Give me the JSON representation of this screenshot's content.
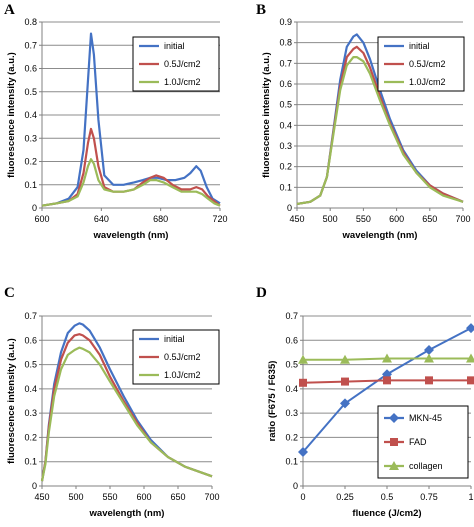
{
  "chart_data": [
    {
      "id": "A",
      "type": "line",
      "panel_label": "A",
      "xlabel": "wavelength (nm)",
      "ylabel": "fluorescence intensity (a.u.)",
      "xlim": [
        600,
        720
      ],
      "ylim": [
        0,
        0.8
      ],
      "xticks": [
        600,
        640,
        680,
        720
      ],
      "yticks": [
        0,
        0.1,
        0.2,
        0.3,
        0.4,
        0.5,
        0.6,
        0.7,
        0.8
      ],
      "xtick_labels": [
        "600",
        "640",
        "680",
        "720"
      ],
      "ytick_labels": [
        "0",
        "0.1",
        "0.2",
        "0.3",
        "0.4",
        "0.5",
        "0.6",
        "0.7",
        "0.8"
      ],
      "grid": "horizontal",
      "legend": "top-right",
      "series": [
        {
          "name": "initial",
          "color": "#4472c4",
          "x": [
            600,
            610,
            618,
            624,
            628,
            631,
            633,
            635,
            638,
            642,
            648,
            655,
            662,
            668,
            673,
            678,
            684,
            690,
            696,
            700,
            704,
            707,
            711,
            715,
            720
          ],
          "y": [
            0.01,
            0.02,
            0.04,
            0.09,
            0.25,
            0.55,
            0.75,
            0.66,
            0.38,
            0.14,
            0.1,
            0.1,
            0.11,
            0.12,
            0.13,
            0.13,
            0.12,
            0.12,
            0.13,
            0.15,
            0.18,
            0.16,
            0.09,
            0.04,
            0.02
          ]
        },
        {
          "name": "0.5J/cm2",
          "color": "#c0504d",
          "x": [
            600,
            610,
            618,
            624,
            628,
            631,
            633,
            635,
            638,
            642,
            648,
            655,
            662,
            668,
            673,
            677,
            682,
            688,
            694,
            700,
            704,
            708,
            712,
            716,
            720
          ],
          "y": [
            0.01,
            0.02,
            0.03,
            0.06,
            0.15,
            0.28,
            0.34,
            0.3,
            0.18,
            0.09,
            0.07,
            0.07,
            0.08,
            0.11,
            0.13,
            0.14,
            0.13,
            0.1,
            0.08,
            0.08,
            0.09,
            0.08,
            0.05,
            0.03,
            0.01
          ]
        },
        {
          "name": "1.0J/cm2",
          "color": "#9bbb59",
          "x": [
            600,
            610,
            618,
            624,
            628,
            631,
            633,
            635,
            638,
            642,
            648,
            655,
            662,
            668,
            673,
            677,
            682,
            688,
            694,
            700,
            704,
            708,
            712,
            716,
            720
          ],
          "y": [
            0.01,
            0.02,
            0.03,
            0.05,
            0.11,
            0.18,
            0.21,
            0.19,
            0.12,
            0.08,
            0.07,
            0.07,
            0.08,
            0.1,
            0.12,
            0.12,
            0.11,
            0.09,
            0.07,
            0.07,
            0.07,
            0.06,
            0.04,
            0.02,
            0.01
          ]
        }
      ]
    },
    {
      "id": "B",
      "type": "line",
      "panel_label": "B",
      "xlabel": "wavelength (nm)",
      "ylabel": "fluorescence intensity (a.u.)",
      "xlim": [
        450,
        700
      ],
      "ylim": [
        0,
        0.9
      ],
      "xticks": [
        450,
        500,
        550,
        600,
        650,
        700
      ],
      "yticks": [
        0,
        0.1,
        0.2,
        0.3,
        0.4,
        0.5,
        0.6,
        0.7,
        0.8,
        0.9
      ],
      "xtick_labels": [
        "450",
        "500",
        "550",
        "600",
        "650",
        "700"
      ],
      "ytick_labels": [
        "0",
        "0.1",
        "0.2",
        "0.3",
        "0.4",
        "0.5",
        "0.6",
        "0.7",
        "0.8",
        "0.9"
      ],
      "grid": "horizontal",
      "legend": "top-right",
      "series": [
        {
          "name": "initial",
          "color": "#4472c4",
          "x": [
            450,
            470,
            485,
            495,
            505,
            515,
            525,
            535,
            540,
            550,
            560,
            575,
            590,
            610,
            630,
            650,
            670,
            700
          ],
          "y": [
            0.02,
            0.03,
            0.06,
            0.15,
            0.38,
            0.62,
            0.78,
            0.83,
            0.84,
            0.8,
            0.72,
            0.57,
            0.43,
            0.28,
            0.18,
            0.11,
            0.07,
            0.03
          ]
        },
        {
          "name": "0.5J/cm2",
          "color": "#c0504d",
          "x": [
            450,
            470,
            485,
            495,
            505,
            515,
            525,
            535,
            540,
            550,
            560,
            575,
            590,
            610,
            630,
            650,
            670,
            700
          ],
          "y": [
            0.02,
            0.03,
            0.06,
            0.15,
            0.37,
            0.59,
            0.73,
            0.77,
            0.78,
            0.75,
            0.68,
            0.54,
            0.41,
            0.27,
            0.17,
            0.11,
            0.07,
            0.03
          ]
        },
        {
          "name": "1.0J/cm2",
          "color": "#9bbb59",
          "x": [
            450,
            470,
            485,
            495,
            505,
            515,
            525,
            535,
            540,
            550,
            560,
            575,
            590,
            610,
            630,
            650,
            670,
            700
          ],
          "y": [
            0.02,
            0.03,
            0.06,
            0.15,
            0.36,
            0.57,
            0.69,
            0.73,
            0.73,
            0.71,
            0.65,
            0.52,
            0.4,
            0.26,
            0.17,
            0.1,
            0.06,
            0.03
          ]
        }
      ]
    },
    {
      "id": "C",
      "type": "line",
      "panel_label": "C",
      "xlabel": "wavelength (nm)",
      "ylabel": "fluorescence intensity (a.u.)",
      "xlim": [
        450,
        700
      ],
      "ylim": [
        0,
        0.7
      ],
      "xticks": [
        450,
        500,
        550,
        600,
        650,
        700
      ],
      "yticks": [
        0,
        0.1,
        0.2,
        0.3,
        0.4,
        0.5,
        0.6,
        0.7
      ],
      "xtick_labels": [
        "450",
        "500",
        "550",
        "600",
        "650",
        "700"
      ],
      "ytick_labels": [
        "0",
        "0.1",
        "0.2",
        "0.3",
        "0.4",
        "0.5",
        "0.6",
        "0.7"
      ],
      "grid": "horizontal",
      "legend": "top-right",
      "series": [
        {
          "name": "initial",
          "color": "#4472c4",
          "x": [
            450,
            455,
            460,
            468,
            478,
            488,
            498,
            505,
            510,
            520,
            535,
            550,
            570,
            590,
            610,
            635,
            660,
            700
          ],
          "y": [
            0.02,
            0.1,
            0.25,
            0.42,
            0.55,
            0.63,
            0.66,
            0.67,
            0.665,
            0.64,
            0.57,
            0.48,
            0.37,
            0.27,
            0.19,
            0.12,
            0.08,
            0.04
          ]
        },
        {
          "name": "0.5J/cm2",
          "color": "#c0504d",
          "x": [
            450,
            455,
            460,
            468,
            478,
            488,
            498,
            505,
            510,
            520,
            535,
            550,
            570,
            590,
            610,
            635,
            660,
            700
          ],
          "y": [
            0.02,
            0.1,
            0.24,
            0.4,
            0.52,
            0.59,
            0.62,
            0.625,
            0.62,
            0.6,
            0.54,
            0.45,
            0.35,
            0.26,
            0.18,
            0.12,
            0.08,
            0.04
          ]
        },
        {
          "name": "1.0J/cm2",
          "color": "#9bbb59",
          "x": [
            450,
            455,
            460,
            468,
            478,
            488,
            498,
            505,
            510,
            520,
            535,
            550,
            570,
            590,
            610,
            635,
            660,
            700
          ],
          "y": [
            0.02,
            0.09,
            0.22,
            0.37,
            0.48,
            0.54,
            0.56,
            0.57,
            0.565,
            0.55,
            0.5,
            0.43,
            0.34,
            0.25,
            0.18,
            0.12,
            0.08,
            0.04
          ]
        }
      ]
    },
    {
      "id": "D",
      "type": "line",
      "panel_label": "D",
      "xlabel": "fluence (J/cm2)",
      "ylabel": "ratio (F675 / F635)",
      "xlim": [
        0,
        1
      ],
      "ylim": [
        0,
        0.7
      ],
      "xticks": [
        0,
        0.25,
        0.5,
        0.75,
        1
      ],
      "yticks": [
        0,
        0.1,
        0.2,
        0.3,
        0.4,
        0.5,
        0.6,
        0.7
      ],
      "xtick_labels": [
        "0",
        "0.25",
        "0.5",
        "0.75",
        "1"
      ],
      "ytick_labels": [
        "0",
        "0.1",
        "0.2",
        "0.3",
        "0.4",
        "0.5",
        "0.6",
        "0.7"
      ],
      "grid": "horizontal",
      "legend": "bottom-right",
      "series": [
        {
          "name": "MKN-45",
          "color": "#4472c4",
          "marker": "diamond",
          "x": [
            0,
            0.25,
            0.5,
            0.75,
            1
          ],
          "y": [
            0.14,
            0.34,
            0.46,
            0.56,
            0.65
          ],
          "err": [
            0.015,
            0.015,
            0.01,
            0.01,
            0.008
          ]
        },
        {
          "name": "FAD",
          "color": "#c0504d",
          "marker": "square",
          "x": [
            0,
            0.25,
            0.5,
            0.75,
            1
          ],
          "y": [
            0.425,
            0.43,
            0.435,
            0.435,
            0.435
          ]
        },
        {
          "name": "collagen",
          "color": "#9bbb59",
          "marker": "triangle",
          "x": [
            0,
            0.25,
            0.5,
            0.75,
            1
          ],
          "y": [
            0.52,
            0.52,
            0.525,
            0.525,
            0.525
          ]
        }
      ]
    }
  ]
}
